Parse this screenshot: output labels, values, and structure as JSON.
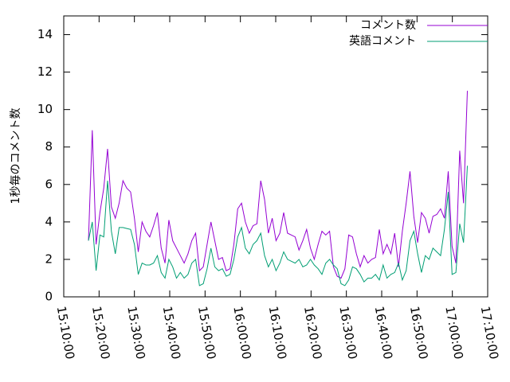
{
  "chart_data": {
    "type": "line",
    "ylabel": "1秒毎のコメント数",
    "x": [
      "15:17:00",
      "15:18:05",
      "15:19:10",
      "15:20:15",
      "15:21:20",
      "15:22:25",
      "15:23:30",
      "15:24:35",
      "15:25:40",
      "15:26:45",
      "15:27:50",
      "15:28:55",
      "15:30:00",
      "15:31:05",
      "15:32:10",
      "15:33:15",
      "15:34:20",
      "15:35:25",
      "15:36:30",
      "15:37:35",
      "15:38:40",
      "15:39:45",
      "15:40:50",
      "15:41:55",
      "15:43:00",
      "15:44:05",
      "15:45:10",
      "15:46:15",
      "15:47:20",
      "15:48:25",
      "15:49:30",
      "15:50:35",
      "15:51:40",
      "15:52:45",
      "15:53:50",
      "15:54:55",
      "15:56:00",
      "15:57:05",
      "15:58:10",
      "15:59:15",
      "16:00:20",
      "16:01:25",
      "16:02:30",
      "16:03:35",
      "16:04:40",
      "16:05:45",
      "16:06:50",
      "16:07:55",
      "16:09:00",
      "16:10:05",
      "16:11:10",
      "16:12:15",
      "16:13:20",
      "16:14:25",
      "16:15:30",
      "16:16:35",
      "16:17:40",
      "16:18:45",
      "16:19:50",
      "16:20:55",
      "16:22:00",
      "16:23:05",
      "16:24:10",
      "16:25:15",
      "16:26:20",
      "16:27:25",
      "16:28:30",
      "16:29:35",
      "16:30:40",
      "16:31:45",
      "16:32:50",
      "16:33:55",
      "16:35:00",
      "16:36:05",
      "16:37:10",
      "16:38:15",
      "16:39:20",
      "16:40:25",
      "16:41:30",
      "16:42:35",
      "16:43:40",
      "16:44:45",
      "16:45:50",
      "16:46:55",
      "16:48:00",
      "16:49:05",
      "16:50:10",
      "16:51:15",
      "16:52:20",
      "16:53:25",
      "16:54:30",
      "16:55:35",
      "16:56:40",
      "16:57:45",
      "16:58:50",
      "16:59:55",
      "17:01:00",
      "17:02:05",
      "17:03:10",
      "17:04:15"
    ],
    "series": [
      {
        "name": "コメント数",
        "color": "#9400d3",
        "values": [
          3.0,
          8.9,
          2.8,
          4.5,
          5.8,
          7.9,
          4.8,
          4.2,
          5.0,
          6.2,
          5.8,
          5.6,
          4.2,
          2.4,
          4.0,
          3.5,
          3.2,
          3.8,
          4.5,
          2.6,
          1.8,
          4.1,
          3.0,
          2.6,
          2.2,
          1.8,
          2.3,
          3.0,
          3.4,
          1.4,
          1.6,
          2.8,
          4.0,
          3.0,
          2.0,
          2.1,
          1.4,
          1.5,
          2.8,
          4.7,
          5.0,
          4.0,
          3.4,
          3.8,
          3.9,
          6.2,
          5.2,
          3.4,
          4.2,
          3.0,
          3.4,
          4.5,
          3.4,
          3.3,
          3.2,
          2.5,
          3.0,
          3.6,
          2.6,
          2.0,
          2.8,
          3.5,
          3.3,
          3.5,
          1.6,
          1.1,
          1.0,
          1.5,
          3.3,
          3.2,
          2.3,
          1.6,
          2.2,
          1.8,
          2.0,
          2.1,
          3.6,
          2.3,
          2.8,
          2.3,
          3.4,
          1.6,
          3.5,
          5.0,
          6.7,
          4.3,
          2.9,
          4.5,
          4.2,
          3.4,
          4.3,
          4.4,
          4.7,
          4.2,
          6.7,
          2.7,
          1.8,
          7.8,
          5.0,
          11.0
        ]
      },
      {
        "name": "英語コメント",
        "color": "#009e73",
        "values": [
          3.0,
          4.0,
          1.4,
          3.3,
          3.2,
          6.2,
          3.5,
          2.3,
          3.7,
          3.7,
          3.65,
          3.6,
          2.8,
          1.2,
          1.8,
          1.7,
          1.7,
          1.8,
          2.2,
          1.3,
          1.0,
          2.0,
          1.6,
          1.0,
          1.3,
          1.0,
          1.2,
          1.8,
          2.0,
          0.6,
          0.7,
          1.5,
          2.6,
          1.6,
          1.4,
          1.5,
          1.1,
          1.2,
          2.0,
          3.2,
          3.7,
          2.6,
          2.3,
          2.8,
          3.0,
          3.4,
          2.2,
          1.6,
          2.0,
          1.4,
          1.8,
          2.4,
          2.0,
          1.9,
          1.8,
          2.0,
          1.6,
          1.7,
          2.0,
          1.7,
          1.5,
          1.2,
          1.8,
          2.0,
          1.7,
          1.5,
          0.7,
          0.6,
          0.9,
          1.6,
          1.5,
          1.2,
          0.8,
          1.0,
          1.0,
          1.2,
          0.9,
          1.7,
          1.0,
          1.2,
          1.3,
          1.8,
          0.9,
          1.4,
          3.0,
          3.5,
          2.3,
          1.3,
          2.2,
          2.0,
          2.6,
          2.4,
          2.2,
          3.6,
          5.6,
          1.2,
          1.3,
          3.9,
          2.9,
          7.0
        ]
      }
    ],
    "xlim": [
      "15:10:00",
      "17:10:00"
    ],
    "xticks": [
      "15:10:00",
      "15:20:00",
      "15:30:00",
      "15:40:00",
      "15:50:00",
      "16:00:00",
      "16:10:00",
      "16:20:00",
      "16:30:00",
      "16:40:00",
      "16:50:00",
      "17:00:00",
      "17:10:00"
    ],
    "ylim": [
      0,
      15
    ],
    "yticks": [
      0,
      2,
      4,
      6,
      8,
      10,
      12,
      14
    ],
    "legend": "upper right",
    "grid": false
  }
}
